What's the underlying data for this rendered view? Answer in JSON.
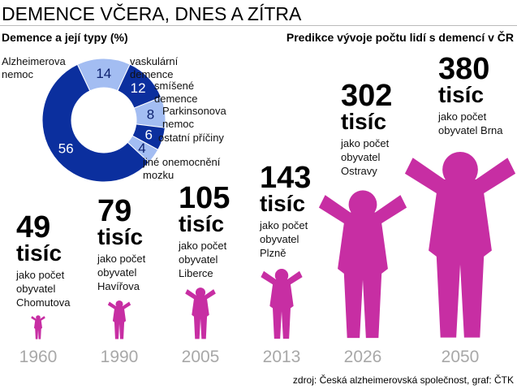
{
  "title": "DEMENCE VČERA, DNES A ZÍTRA",
  "source": "zdroj: Česká alzheimerovská společnost, graf: ČTK",
  "chart_data": [
    {
      "type": "pie",
      "donut": true,
      "title": "Demence a její typy (%)",
      "categories": [
        "Alzheimerova nemoc",
        "vaskulární demence",
        "smíšené demence",
        "Parkinsonova nemoc",
        "ostatní příčiny",
        "jiné onemocnění mozku"
      ],
      "values": [
        56,
        14,
        12,
        8,
        6,
        4
      ],
      "colors": [
        "#0b2f9e",
        "#a3bdf2",
        "#0b2f9e",
        "#a3bdf2",
        "#0b2f9e",
        "#a3bdf2"
      ]
    },
    {
      "type": "pictogram",
      "title": "Predikce vývoje počtu lidí s demencí v ČR",
      "categories": [
        "1960",
        "1990",
        "2005",
        "2013",
        "2026",
        "2050"
      ],
      "values": [
        49,
        79,
        105,
        143,
        302,
        380
      ],
      "unit": "tisíc",
      "annotations": [
        "jako počet obyvatel Chomutova",
        "jako počet obyvatel Havířova",
        "jako počet obyvatel Liberce",
        "jako počet obyvatel Plzně",
        "jako počet obyvatel Ostravy",
        "jako počet obyvatel Brna"
      ],
      "color": "#c72ea3"
    }
  ]
}
